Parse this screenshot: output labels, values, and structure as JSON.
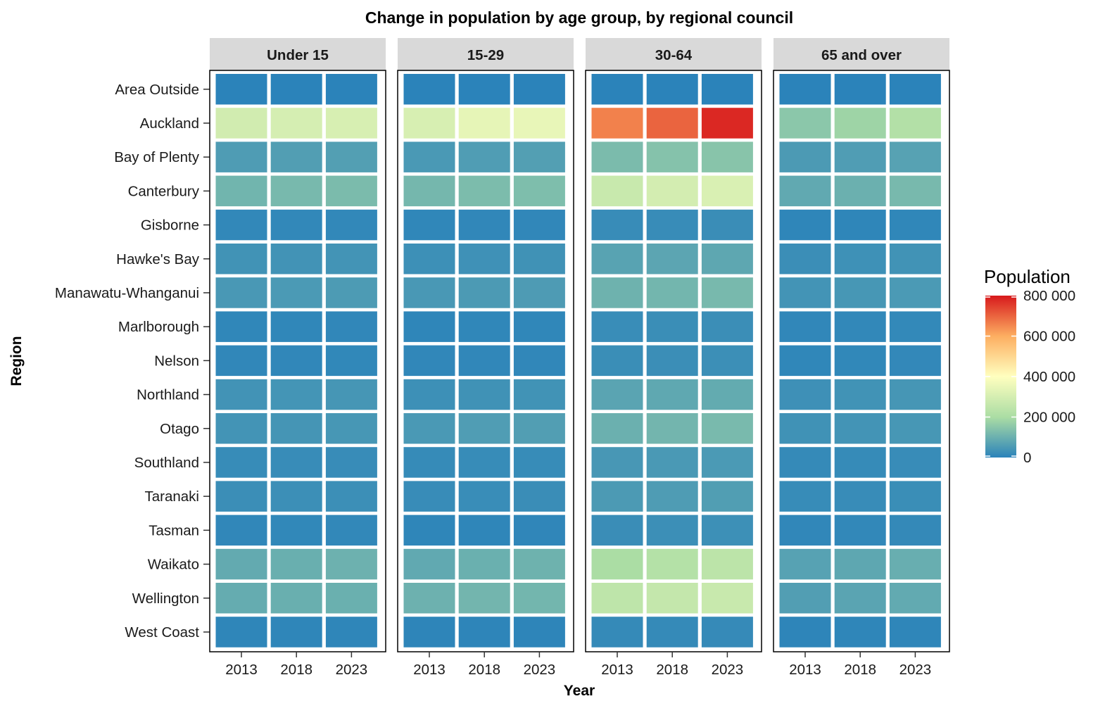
{
  "chart_data": {
    "type": "heatmap",
    "title": "Change in population by age group, by regional council",
    "xlabel": "Year",
    "ylabel": "Region",
    "years": [
      "2013",
      "2018",
      "2023"
    ],
    "regions": [
      "Area Outside",
      "Auckland",
      "Bay of Plenty",
      "Canterbury",
      "Gisborne",
      "Hawke's Bay",
      "Manawatu-Whanganui",
      "Marlborough",
      "Nelson",
      "Northland",
      "Otago",
      "Southland",
      "Taranaki",
      "Tasman",
      "Waikato",
      "Wellington",
      "West Coast"
    ],
    "facets": [
      {
        "name": "Under 15",
        "values": [
          [
            500,
            500,
            500
          ],
          [
            290000,
            300000,
            305000
          ],
          [
            56000,
            61000,
            62000
          ],
          [
            110000,
            120000,
            125000
          ],
          [
            11000,
            11000,
            11000
          ],
          [
            35000,
            36000,
            38000
          ],
          [
            47000,
            50000,
            53000
          ],
          [
            8000,
            8500,
            9000
          ],
          [
            9000,
            9500,
            10000
          ],
          [
            36000,
            39000,
            42000
          ],
          [
            38000,
            41000,
            44000
          ],
          [
            19000,
            20000,
            21000
          ],
          [
            25000,
            26000,
            27000
          ],
          [
            9000,
            10000,
            10500
          ],
          [
            87000,
            97000,
            103000
          ],
          [
            91000,
            97000,
            99000
          ],
          [
            6000,
            6000,
            6000
          ]
        ]
      },
      {
        "name": "15-29",
        "values": [
          [
            500,
            500,
            500
          ],
          [
            305000,
            340000,
            345000
          ],
          [
            48000,
            58000,
            62000
          ],
          [
            115000,
            127000,
            130000
          ],
          [
            8000,
            9000,
            9500
          ],
          [
            28000,
            31000,
            33000
          ],
          [
            47000,
            51000,
            54000
          ],
          [
            7000,
            8000,
            8500
          ],
          [
            9000,
            9500,
            9500
          ],
          [
            28000,
            33000,
            35000
          ],
          [
            49000,
            58000,
            61000
          ],
          [
            17000,
            19000,
            19500
          ],
          [
            20000,
            22000,
            23000
          ],
          [
            6000,
            7000,
            7500
          ],
          [
            84000,
            99000,
            105000
          ],
          [
            103000,
            112000,
            113000
          ],
          [
            5000,
            5000,
            5000
          ]
        ]
      },
      {
        "name": "30-64",
        "values": [
          [
            500,
            500,
            500
          ],
          [
            660000,
            700000,
            780000
          ],
          [
            125000,
            140000,
            145000
          ],
          [
            270000,
            295000,
            310000
          ],
          [
            20000,
            21000,
            23000
          ],
          [
            70000,
            76000,
            80000
          ],
          [
            105000,
            113000,
            120000
          ],
          [
            22000,
            24000,
            25000
          ],
          [
            24000,
            25000,
            27000
          ],
          [
            73000,
            82000,
            88000
          ],
          [
            100000,
            112000,
            122000
          ],
          [
            45000,
            48000,
            50000
          ],
          [
            52000,
            56000,
            60000
          ],
          [
            23000,
            26000,
            28000
          ],
          [
            200000,
            222000,
            240000
          ],
          [
            245000,
            260000,
            270000
          ],
          [
            15000,
            16000,
            16500
          ]
        ]
      },
      {
        "name": "65 and over",
        "values": [
          [
            500,
            500,
            500
          ],
          [
            150000,
            180000,
            220000
          ],
          [
            52000,
            58000,
            68000
          ],
          [
            85000,
            100000,
            120000
          ],
          [
            6000,
            7000,
            8500
          ],
          [
            25000,
            30000,
            35000
          ],
          [
            37000,
            44000,
            50000
          ],
          [
            9000,
            11000,
            13000
          ],
          [
            8000,
            10000,
            12000
          ],
          [
            29000,
            35000,
            42000
          ],
          [
            33000,
            38000,
            44000
          ],
          [
            15000,
            17000,
            20000
          ],
          [
            19000,
            21000,
            24000
          ],
          [
            9000,
            11000,
            14000
          ],
          [
            68000,
            80000,
            95000
          ],
          [
            61000,
            73000,
            86000
          ],
          [
            5000,
            6000,
            7000
          ]
        ]
      }
    ],
    "legend": {
      "title": "Population",
      "ticks": [
        "800 000",
        "600 000",
        "400 000",
        "200 000",
        "0"
      ],
      "tick_values": [
        800000,
        600000,
        400000,
        200000,
        0
      ],
      "range": [
        0,
        800000
      ],
      "palette": [
        "#2B83BA",
        "#ABDDA4",
        "#FFFFBF",
        "#FDAE61",
        "#D7191C"
      ],
      "placement": "right"
    },
    "colors": {
      "facet_strip": "#D9D9D9",
      "panel_border": "#000000",
      "tile_border": "#ffffff"
    }
  }
}
